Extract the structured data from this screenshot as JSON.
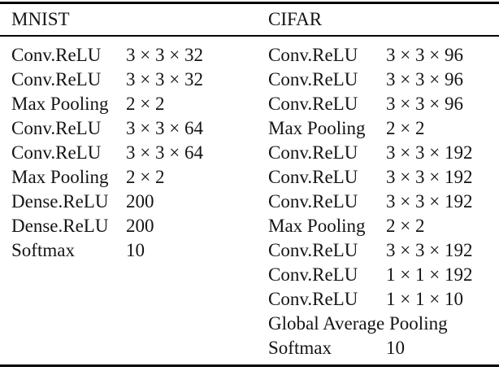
{
  "table": {
    "mnist": {
      "header": "MNIST",
      "rows": [
        {
          "layer": "Conv.ReLU",
          "size": "3 × 3 × 32"
        },
        {
          "layer": "Conv.ReLU",
          "size": "3 × 3 × 32"
        },
        {
          "layer": "Max Pooling",
          "size": "2 × 2"
        },
        {
          "layer": "Conv.ReLU",
          "size": "3 × 3 × 64"
        },
        {
          "layer": "Conv.ReLU",
          "size": "3 × 3 × 64"
        },
        {
          "layer": "Max Pooling",
          "size": "2 × 2"
        },
        {
          "layer": "Dense.ReLU",
          "size": "200"
        },
        {
          "layer": "Dense.ReLU",
          "size": "200"
        },
        {
          "layer": "Softmax",
          "size": "10"
        }
      ]
    },
    "cifar": {
      "header": "CIFAR",
      "rows": [
        {
          "layer": "Conv.ReLU",
          "size": "3 × 3 × 96"
        },
        {
          "layer": "Conv.ReLU",
          "size": "3 × 3 × 96"
        },
        {
          "layer": "Conv.ReLU",
          "size": "3 × 3 × 96"
        },
        {
          "layer": "Max Pooling",
          "size": "2 × 2"
        },
        {
          "layer": "Conv.ReLU",
          "size": "3 × 3 × 192"
        },
        {
          "layer": "Conv.ReLU",
          "size": "3 × 3 × 192"
        },
        {
          "layer": "Conv.ReLU",
          "size": "3 × 3 × 192"
        },
        {
          "layer": "Max Pooling",
          "size": "2 × 2"
        },
        {
          "layer": "Conv.ReLU",
          "size": "3 × 3 × 192"
        },
        {
          "layer": "Conv.ReLU",
          "size": "1 × 1 × 192"
        },
        {
          "layer": "Conv.ReLU",
          "size": "1 × 1 × 10"
        },
        {
          "layer": "Global Average Pooling",
          "size": ""
        },
        {
          "layer": "Softmax",
          "size": "10"
        }
      ]
    }
  }
}
